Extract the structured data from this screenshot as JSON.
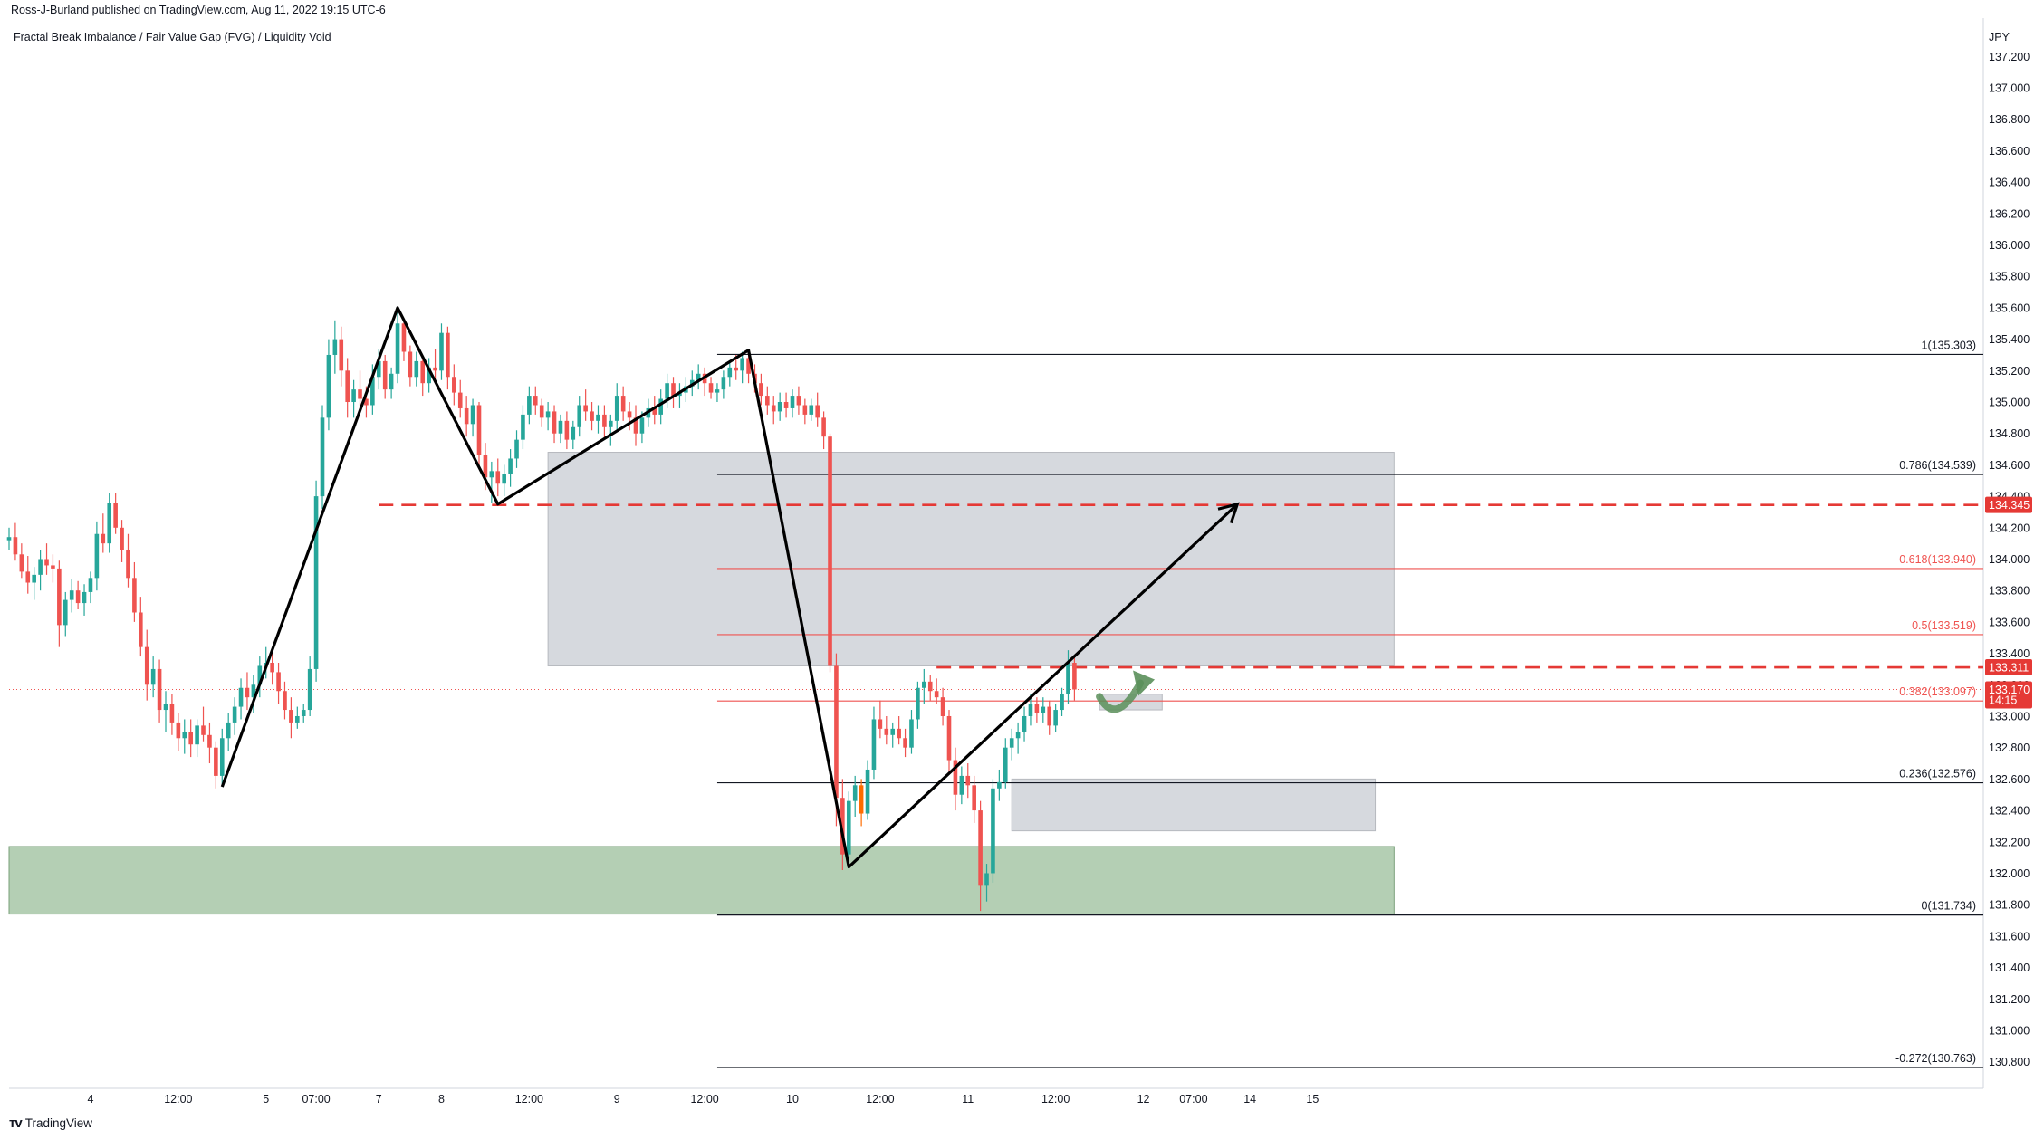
{
  "header": {
    "published": "Ross-J-Burland published on TradingView.com, Aug 11, 2022 19:15 UTC-6"
  },
  "chart_title": "Fractal Break Imbalance / Fair Value Gap (FVG) / Liquidity Void",
  "branding": {
    "logo_icon": "tradingview-logo-icon",
    "label": "TradingView"
  },
  "colors": {
    "up": "#26a69a",
    "down": "#ef5350",
    "fib_line": "#ef5350",
    "fib_base": "#131722",
    "zone_gray": "#cfd2d8",
    "zone_green": "#9bbf9b",
    "dashed": "#e53935",
    "badge": "#e53935",
    "trend": "#000000",
    "drop_candle": "#ff6d00"
  },
  "chart_data": {
    "type": "candlestick",
    "symbol_unit": "JPY",
    "ylim": [
      130.7,
      137.3
    ],
    "y_ticks": [
      "137.200",
      "137.000",
      "136.800",
      "136.600",
      "136.400",
      "136.200",
      "136.000",
      "135.800",
      "135.600",
      "135.400",
      "135.200",
      "135.000",
      "134.800",
      "134.600",
      "134.400",
      "134.200",
      "134.000",
      "133.800",
      "133.600",
      "133.400",
      "133.200",
      "133.000",
      "132.800",
      "132.600",
      "132.400",
      "132.200",
      "132.000",
      "131.800",
      "131.600",
      "131.400",
      "131.200",
      "131.000",
      "130.800"
    ],
    "x_ticks": [
      {
        "label": "4",
        "idx": 13
      },
      {
        "label": "12:00",
        "idx": 27
      },
      {
        "label": "5",
        "idx": 41
      },
      {
        "label": "07:00",
        "idx": 49
      },
      {
        "label": "7",
        "idx": 59
      },
      {
        "label": "8",
        "idx": 69
      },
      {
        "label": "12:00",
        "idx": 83
      },
      {
        "label": "9",
        "idx": 97
      },
      {
        "label": "12:00",
        "idx": 111
      },
      {
        "label": "10",
        "idx": 125
      },
      {
        "label": "12:00",
        "idx": 139
      },
      {
        "label": "11",
        "idx": 153
      },
      {
        "label": "12:00",
        "idx": 167
      },
      {
        "label": "12",
        "idx": 181
      },
      {
        "label": "07:00",
        "idx": 189
      },
      {
        "label": "14",
        "idx": 198
      },
      {
        "label": "15",
        "idx": 208
      }
    ],
    "fib_levels": [
      {
        "label": "1(135.303)",
        "value": 135.303,
        "base": true
      },
      {
        "label": "0.786(134.539)",
        "value": 134.539,
        "base": true
      },
      {
        "label": "0.618(133.940)",
        "value": 133.94,
        "base": false
      },
      {
        "label": "0.5(133.519)",
        "value": 133.519,
        "base": false
      },
      {
        "label": "0.382(133.097)",
        "value": 133.097,
        "base": false
      },
      {
        "label": "0.236(132.576)",
        "value": 132.576,
        "base": true
      },
      {
        "label": "0(131.734)",
        "value": 131.734,
        "base": true
      },
      {
        "label": "-0.272(130.763)",
        "value": 130.763,
        "base": true
      }
    ],
    "price_badges": [
      {
        "label": "134.345",
        "value": 134.345
      },
      {
        "label": "133.311",
        "value": 133.311
      },
      {
        "label": "133.170",
        "sub": "14:15",
        "value": 133.17
      }
    ],
    "last_price": 133.17,
    "zones": [
      {
        "name": "fvg-zone",
        "from_idx": 86,
        "to_idx": 221,
        "top": 134.68,
        "bottom": 133.32
      },
      {
        "name": "liquidity-void-zone",
        "from_idx": 160,
        "to_idx": 218,
        "top": 132.6,
        "bottom": 132.27
      },
      {
        "name": "small-imbalance-zone",
        "from_idx": 174,
        "to_idx": 184,
        "top": 133.14,
        "bottom": 133.04
      },
      {
        "name": "demand-zone",
        "from_idx": 0,
        "to_idx": 221,
        "top": 132.17,
        "bottom": 131.74
      }
    ],
    "dashed_levels": [
      {
        "value": 134.345,
        "from_idx": 59
      },
      {
        "value": 133.311,
        "from_idx": 148
      }
    ],
    "trend_lines": [
      [
        [
          34,
          132.55
        ],
        [
          62,
          135.6
        ],
        [
          78,
          134.35
        ],
        [
          118,
          135.33
        ],
        [
          134,
          132.04
        ],
        [
          196,
          134.35
        ]
      ]
    ],
    "candles": [
      [
        134.12,
        134.2,
        134.06,
        134.14
      ],
      [
        134.14,
        134.23,
        133.99,
        134.03
      ],
      [
        134.03,
        134.1,
        133.88,
        133.92
      ],
      [
        133.92,
        134.02,
        133.78,
        133.85
      ],
      [
        133.85,
        133.95,
        133.74,
        133.9
      ],
      [
        133.9,
        134.06,
        133.8,
        134.0
      ],
      [
        134.0,
        134.1,
        133.9,
        133.96
      ],
      [
        133.96,
        134.03,
        133.85,
        133.94
      ],
      [
        133.94,
        133.99,
        133.44,
        133.58
      ],
      [
        133.58,
        133.79,
        133.51,
        133.74
      ],
      [
        133.74,
        133.87,
        133.66,
        133.8
      ],
      [
        133.8,
        133.86,
        133.68,
        133.72
      ],
      [
        133.72,
        133.84,
        133.64,
        133.79
      ],
      [
        133.79,
        133.92,
        133.72,
        133.88
      ],
      [
        133.88,
        134.24,
        133.8,
        134.16
      ],
      [
        134.16,
        134.29,
        134.04,
        134.1
      ],
      [
        134.1,
        134.42,
        134.04,
        134.36
      ],
      [
        134.36,
        134.42,
        134.16,
        134.2
      ],
      [
        134.2,
        134.25,
        133.98,
        134.06
      ],
      [
        134.06,
        134.16,
        133.82,
        133.88
      ],
      [
        133.88,
        133.98,
        133.6,
        133.66
      ],
      [
        133.66,
        133.76,
        133.38,
        133.44
      ],
      [
        133.44,
        133.55,
        133.1,
        133.2
      ],
      [
        133.2,
        133.38,
        133.12,
        133.3
      ],
      [
        133.3,
        133.36,
        132.96,
        133.04
      ],
      [
        133.04,
        133.16,
        132.9,
        133.08
      ],
      [
        133.08,
        133.14,
        132.88,
        132.96
      ],
      [
        132.96,
        133.02,
        132.78,
        132.86
      ],
      [
        132.86,
        132.98,
        132.76,
        132.9
      ],
      [
        132.9,
        132.98,
        132.74,
        132.82
      ],
      [
        132.82,
        132.98,
        132.74,
        132.94
      ],
      [
        132.94,
        133.06,
        132.84,
        132.88
      ],
      [
        132.88,
        132.96,
        132.7,
        132.8
      ],
      [
        132.8,
        132.84,
        132.54,
        132.62
      ],
      [
        132.62,
        132.92,
        132.56,
        132.86
      ],
      [
        132.86,
        133.02,
        132.78,
        132.96
      ],
      [
        132.96,
        133.12,
        132.88,
        133.06
      ],
      [
        133.06,
        133.24,
        132.98,
        133.18
      ],
      [
        133.18,
        133.28,
        133.04,
        133.12
      ],
      [
        133.12,
        133.26,
        133.02,
        133.2
      ],
      [
        133.2,
        133.38,
        133.12,
        133.32
      ],
      [
        133.32,
        133.44,
        133.24,
        133.34
      ],
      [
        133.34,
        133.42,
        133.2,
        133.28
      ],
      [
        133.28,
        133.34,
        133.08,
        133.16
      ],
      [
        133.16,
        133.22,
        132.98,
        133.04
      ],
      [
        133.04,
        133.12,
        132.86,
        132.96
      ],
      [
        132.96,
        133.06,
        132.92,
        133.0
      ],
      [
        133.0,
        133.08,
        132.96,
        133.04
      ],
      [
        133.04,
        133.38,
        133.0,
        133.3
      ],
      [
        133.3,
        134.5,
        133.22,
        134.4
      ],
      [
        134.4,
        134.98,
        134.32,
        134.9
      ],
      [
        134.9,
        135.4,
        134.82,
        135.3
      ],
      [
        135.3,
        135.52,
        135.18,
        135.4
      ],
      [
        135.4,
        135.48,
        135.1,
        135.2
      ],
      [
        135.2,
        135.28,
        134.9,
        135.0
      ],
      [
        135.0,
        135.14,
        134.9,
        135.08
      ],
      [
        135.08,
        135.2,
        134.96,
        135.02
      ],
      [
        135.02,
        135.1,
        134.9,
        134.98
      ],
      [
        134.98,
        135.24,
        134.92,
        135.16
      ],
      [
        135.16,
        135.34,
        135.08,
        135.26
      ],
      [
        135.26,
        135.3,
        135.02,
        135.08
      ],
      [
        135.08,
        135.22,
        135.02,
        135.18
      ],
      [
        135.18,
        135.58,
        135.12,
        135.5
      ],
      [
        135.5,
        135.52,
        135.26,
        135.32
      ],
      [
        135.32,
        135.36,
        135.1,
        135.16
      ],
      [
        135.16,
        135.32,
        135.1,
        135.26
      ],
      [
        135.26,
        135.3,
        135.04,
        135.12
      ],
      [
        135.12,
        135.28,
        135.06,
        135.22
      ],
      [
        135.22,
        135.34,
        135.12,
        135.2
      ],
      [
        135.2,
        135.5,
        135.14,
        135.44
      ],
      [
        135.44,
        135.48,
        135.08,
        135.16
      ],
      [
        135.16,
        135.24,
        134.98,
        135.06
      ],
      [
        135.06,
        135.14,
        134.9,
        134.96
      ],
      [
        134.96,
        135.04,
        134.78,
        134.86
      ],
      [
        134.86,
        135.02,
        134.78,
        134.98
      ],
      [
        134.98,
        135.0,
        134.58,
        134.66
      ],
      [
        134.66,
        134.74,
        134.44,
        134.52
      ],
      [
        134.52,
        134.62,
        134.36,
        134.56
      ],
      [
        134.56,
        134.64,
        134.4,
        134.48
      ],
      [
        134.48,
        134.6,
        134.4,
        134.54
      ],
      [
        134.54,
        134.7,
        134.46,
        134.64
      ],
      [
        134.64,
        134.82,
        134.58,
        134.76
      ],
      [
        134.76,
        134.98,
        134.7,
        134.92
      ],
      [
        134.92,
        135.1,
        134.86,
        135.04
      ],
      [
        135.04,
        135.1,
        134.92,
        134.98
      ],
      [
        134.98,
        135.02,
        134.84,
        134.9
      ],
      [
        134.9,
        135.0,
        134.82,
        134.94
      ],
      [
        134.94,
        134.98,
        134.74,
        134.8
      ],
      [
        134.8,
        134.92,
        134.74,
        134.88
      ],
      [
        134.88,
        134.94,
        134.7,
        134.76
      ],
      [
        134.76,
        134.88,
        134.7,
        134.84
      ],
      [
        134.84,
        135.04,
        134.78,
        134.98
      ],
      [
        134.98,
        135.08,
        134.88,
        134.94
      ],
      [
        134.94,
        135.0,
        134.82,
        134.88
      ],
      [
        134.88,
        134.98,
        134.8,
        134.92
      ],
      [
        134.92,
        134.98,
        134.76,
        134.84
      ],
      [
        134.84,
        134.92,
        134.72,
        134.88
      ],
      [
        134.88,
        135.12,
        134.82,
        135.04
      ],
      [
        135.04,
        135.1,
        134.88,
        134.94
      ],
      [
        134.94,
        135.0,
        134.82,
        134.9
      ],
      [
        134.9,
        134.98,
        134.72,
        134.8
      ],
      [
        134.8,
        134.94,
        134.74,
        134.9
      ],
      [
        134.9,
        135.02,
        134.84,
        134.96
      ],
      [
        134.96,
        135.04,
        134.86,
        134.92
      ],
      [
        134.92,
        135.08,
        134.86,
        135.02
      ],
      [
        135.02,
        135.18,
        134.96,
        135.12
      ],
      [
        135.12,
        135.16,
        134.96,
        135.04
      ],
      [
        135.04,
        135.12,
        134.96,
        135.06
      ],
      [
        135.06,
        135.16,
        135.0,
        135.1
      ],
      [
        135.1,
        135.2,
        135.04,
        135.14
      ],
      [
        135.14,
        135.24,
        135.08,
        135.18
      ],
      [
        135.18,
        135.22,
        135.04,
        135.12
      ],
      [
        135.12,
        135.16,
        135.02,
        135.06
      ],
      [
        135.06,
        135.12,
        135.0,
        135.08
      ],
      [
        135.08,
        135.2,
        135.02,
        135.16
      ],
      [
        135.16,
        135.26,
        135.1,
        135.22
      ],
      [
        135.22,
        135.3,
        135.14,
        135.2
      ],
      [
        135.2,
        135.32,
        135.12,
        135.28
      ],
      [
        135.28,
        135.32,
        135.12,
        135.18
      ],
      [
        135.18,
        135.24,
        135.06,
        135.12
      ],
      [
        135.12,
        135.18,
        134.98,
        135.04
      ],
      [
        135.04,
        135.1,
        134.92,
        134.98
      ],
      [
        134.98,
        135.04,
        134.86,
        134.94
      ],
      [
        134.94,
        135.06,
        134.88,
        135.0
      ],
      [
        135.0,
        135.06,
        134.9,
        134.96
      ],
      [
        134.96,
        135.08,
        134.9,
        135.04
      ],
      [
        135.04,
        135.1,
        134.92,
        134.98
      ],
      [
        134.98,
        135.02,
        134.86,
        134.92
      ],
      [
        134.92,
        135.02,
        134.88,
        134.98
      ],
      [
        134.98,
        135.06,
        134.84,
        134.9
      ],
      [
        134.9,
        134.94,
        134.7,
        134.78
      ],
      [
        134.78,
        134.8,
        133.28,
        133.32
      ],
      [
        133.32,
        133.4,
        132.3,
        132.48
      ],
      [
        132.48,
        132.6,
        132.02,
        132.12
      ],
      [
        132.12,
        132.52,
        132.06,
        132.46
      ],
      [
        132.46,
        132.62,
        132.36,
        132.56
      ],
      [
        132.56,
        132.6,
        132.3,
        132.38
      ],
      [
        132.38,
        132.72,
        132.34,
        132.66
      ],
      [
        132.66,
        133.06,
        132.6,
        132.98
      ],
      [
        132.98,
        133.1,
        132.86,
        132.92
      ],
      [
        132.92,
        133.0,
        132.82,
        132.88
      ],
      [
        132.88,
        132.96,
        132.8,
        132.92
      ],
      [
        132.92,
        133.0,
        132.82,
        132.86
      ],
      [
        132.86,
        132.92,
        132.74,
        132.8
      ],
      [
        132.8,
        133.04,
        132.76,
        132.98
      ],
      [
        132.98,
        133.22,
        132.92,
        133.18
      ],
      [
        133.18,
        133.3,
        133.08,
        133.22
      ],
      [
        133.22,
        133.26,
        133.1,
        133.16
      ],
      [
        133.16,
        133.24,
        133.08,
        133.12
      ],
      [
        133.12,
        133.18,
        132.94,
        133.0
      ],
      [
        133.0,
        133.04,
        132.64,
        132.72
      ],
      [
        132.72,
        132.8,
        132.4,
        132.5
      ],
      [
        132.5,
        132.68,
        132.44,
        132.62
      ],
      [
        132.62,
        132.7,
        132.48,
        132.56
      ],
      [
        132.56,
        132.62,
        132.32,
        132.4
      ],
      [
        132.4,
        132.46,
        131.76,
        131.92
      ],
      [
        131.92,
        132.06,
        131.82,
        132.0
      ],
      [
        132.0,
        132.6,
        131.94,
        132.54
      ],
      [
        132.54,
        132.66,
        132.46,
        132.58
      ],
      [
        132.58,
        132.86,
        132.54,
        132.8
      ],
      [
        132.8,
        132.92,
        132.72,
        132.86
      ],
      [
        132.86,
        132.96,
        132.76,
        132.9
      ],
      [
        132.9,
        133.06,
        132.84,
        133.0
      ],
      [
        133.0,
        133.14,
        132.94,
        133.08
      ],
      [
        133.08,
        133.12,
        132.96,
        133.02
      ],
      [
        133.02,
        133.12,
        132.96,
        133.06
      ],
      [
        133.06,
        133.1,
        132.88,
        132.94
      ],
      [
        132.94,
        133.08,
        132.9,
        133.04
      ],
      [
        133.04,
        133.18,
        133.0,
        133.14
      ],
      [
        133.14,
        133.42,
        133.08,
        133.34
      ],
      [
        133.34,
        133.38,
        133.1,
        133.17
      ]
    ]
  }
}
